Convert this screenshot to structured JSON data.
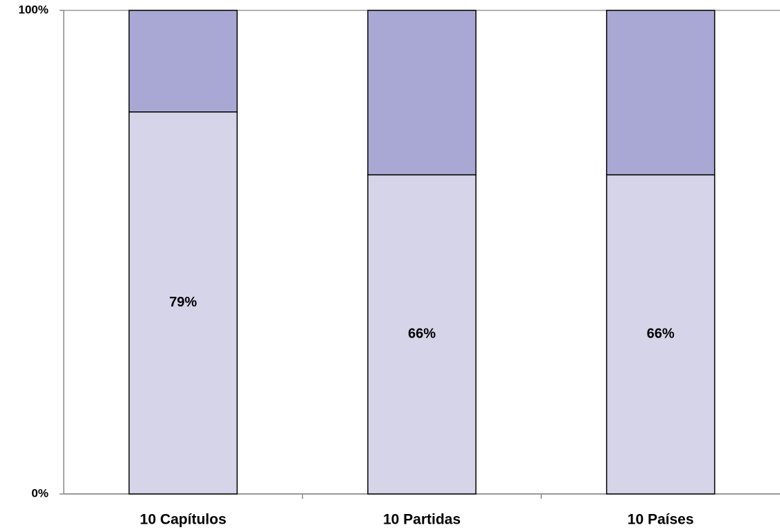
{
  "chart_data": {
    "type": "stacked_bar",
    "categories": [
      "10 Capítulos",
      "10 Partidas",
      "10 Países"
    ],
    "series": [
      {
        "color": "#d6d4e8",
        "values": [
          79,
          66,
          66
        ],
        "value_labels": [
          "79%",
          "66%",
          "66%"
        ]
      },
      {
        "color": "#a9a8d4",
        "values": [
          21,
          34,
          34
        ]
      }
    ],
    "ylim": [
      0,
      100
    ],
    "yticks": [
      {
        "value": 0,
        "label": "0%"
      },
      {
        "value": 100,
        "label": "100%"
      }
    ],
    "grid": true
  }
}
